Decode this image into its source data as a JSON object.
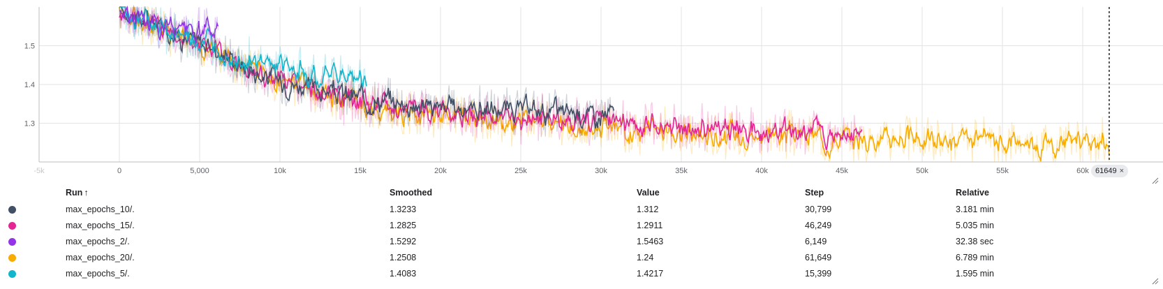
{
  "chart_data": {
    "type": "line",
    "title": "",
    "xlabel": "",
    "ylabel": "",
    "xlim": [
      -5000,
      65000
    ],
    "ylim": [
      1.2,
      1.6
    ],
    "x_ticks": [
      {
        "v": -5000,
        "label": "-5k",
        "faded": true
      },
      {
        "v": 0,
        "label": "0"
      },
      {
        "v": 5000,
        "label": "5,000"
      },
      {
        "v": 10000,
        "label": "10k"
      },
      {
        "v": 15000,
        "label": "15k"
      },
      {
        "v": 20000,
        "label": "20k"
      },
      {
        "v": 25000,
        "label": "25k"
      },
      {
        "v": 30000,
        "label": "30k"
      },
      {
        "v": 35000,
        "label": "35k"
      },
      {
        "v": 40000,
        "label": "40k"
      },
      {
        "v": 45000,
        "label": "45k"
      },
      {
        "v": 50000,
        "label": "50k"
      },
      {
        "v": 55000,
        "label": "55k"
      },
      {
        "v": 60000,
        "label": "60k"
      }
    ],
    "y_ticks": [
      {
        "v": 1.5,
        "label": "1.5"
      },
      {
        "v": 1.4,
        "label": "1.4"
      },
      {
        "v": 1.3,
        "label": "1.3"
      }
    ],
    "cursor_step": 61649,
    "series": [
      {
        "name": "max_epochs_10/.",
        "color": "#425066",
        "x": [
          0,
          2000,
          4000,
          6000,
          8000,
          10000,
          12000,
          14000,
          16000,
          18000,
          20000,
          22000,
          24000,
          26000,
          28000,
          30000,
          30799
        ],
        "y": [
          1.59,
          1.56,
          1.52,
          1.49,
          1.44,
          1.41,
          1.39,
          1.37,
          1.36,
          1.35,
          1.34,
          1.34,
          1.33,
          1.33,
          1.33,
          1.32,
          1.3233
        ]
      },
      {
        "name": "max_epochs_15/.",
        "color": "#e52592",
        "x": [
          0,
          2000,
          4000,
          6000,
          8000,
          10000,
          12000,
          14000,
          16000,
          18000,
          20000,
          22000,
          24000,
          26000,
          28000,
          30000,
          32000,
          34000,
          36000,
          38000,
          40000,
          42000,
          44000,
          46249
        ],
        "y": [
          1.59,
          1.56,
          1.52,
          1.48,
          1.44,
          1.41,
          1.38,
          1.36,
          1.35,
          1.34,
          1.33,
          1.32,
          1.31,
          1.31,
          1.31,
          1.3,
          1.3,
          1.29,
          1.29,
          1.29,
          1.28,
          1.28,
          1.28,
          1.2825
        ]
      },
      {
        "name": "max_epochs_2/.",
        "color": "#9334e6",
        "x": [
          0,
          1000,
          2000,
          3000,
          4000,
          5000,
          6149
        ],
        "y": [
          1.59,
          1.575,
          1.56,
          1.55,
          1.54,
          1.535,
          1.5292
        ]
      },
      {
        "name": "max_epochs_20/.",
        "color": "#f9ab00",
        "x": [
          0,
          2000,
          4000,
          6000,
          8000,
          10000,
          12000,
          14000,
          16000,
          18000,
          20000,
          22000,
          24000,
          26000,
          28000,
          30000,
          32000,
          34000,
          36000,
          38000,
          40000,
          42000,
          44000,
          46000,
          48000,
          50000,
          52000,
          54000,
          56000,
          58000,
          60000,
          61649
        ],
        "y": [
          1.59,
          1.56,
          1.52,
          1.48,
          1.44,
          1.41,
          1.38,
          1.36,
          1.34,
          1.33,
          1.32,
          1.31,
          1.3,
          1.3,
          1.29,
          1.29,
          1.28,
          1.28,
          1.27,
          1.27,
          1.27,
          1.27,
          1.26,
          1.26,
          1.26,
          1.26,
          1.25,
          1.25,
          1.25,
          1.25,
          1.25,
          1.2508
        ]
      },
      {
        "name": "max_epochs_5/.",
        "color": "#12b5cb",
        "x": [
          0,
          2000,
          4000,
          6000,
          8000,
          10000,
          12000,
          14000,
          15399
        ],
        "y": [
          1.59,
          1.56,
          1.52,
          1.49,
          1.46,
          1.44,
          1.43,
          1.42,
          1.4083
        ]
      }
    ]
  },
  "table": {
    "headers": {
      "run": "Run",
      "sort_arrow": "↑",
      "smoothed": "Smoothed",
      "value": "Value",
      "step": "Step",
      "relative": "Relative"
    },
    "rows": [
      {
        "color": "#425066",
        "run": "max_epochs_10/.",
        "smoothed": "1.3233",
        "value": "1.312",
        "step": "30,799",
        "relative": "3.181 min"
      },
      {
        "color": "#e52592",
        "run": "max_epochs_15/.",
        "smoothed": "1.2825",
        "value": "1.2911",
        "step": "46,249",
        "relative": "5.035 min"
      },
      {
        "color": "#9334e6",
        "run": "max_epochs_2/.",
        "smoothed": "1.5292",
        "value": "1.5463",
        "step": "6,149",
        "relative": "32.38 sec"
      },
      {
        "color": "#f9ab00",
        "run": "max_epochs_20/.",
        "smoothed": "1.2508",
        "value": "1.24",
        "step": "61,649",
        "relative": "6.789 min"
      },
      {
        "color": "#12b5cb",
        "run": "max_epochs_5/.",
        "smoothed": "1.4083",
        "value": "1.4217",
        "step": "15,399",
        "relative": "1.595 min"
      }
    ]
  },
  "cursor_chip": {
    "label": "61649",
    "close": "×"
  }
}
